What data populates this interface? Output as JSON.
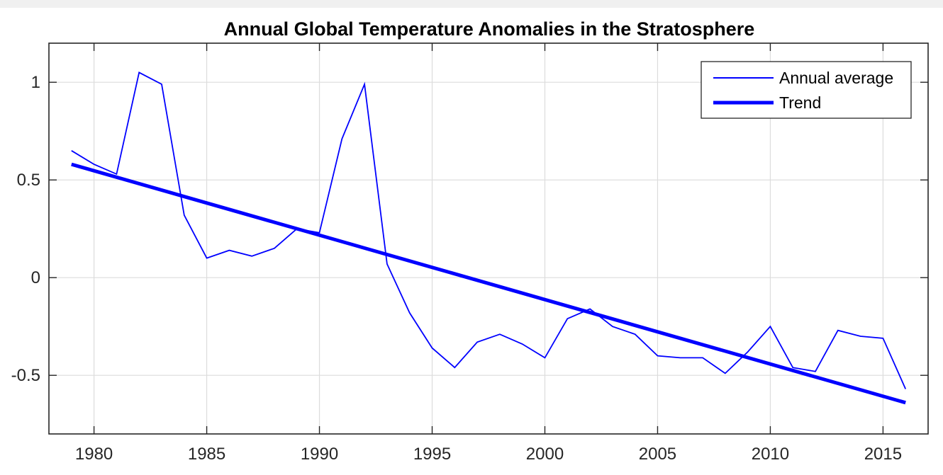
{
  "chart_data": {
    "type": "line",
    "title": "Annual Global Temperature Anomalies in the Stratosphere",
    "xlabel": "",
    "ylabel": "",
    "xlim": [
      1978,
      2017
    ],
    "ylim": [
      -0.8,
      1.2
    ],
    "xticks": [
      1980,
      1985,
      1990,
      1995,
      2000,
      2005,
      2010,
      2015
    ],
    "yticks": [
      -0.5,
      0,
      0.5,
      1
    ],
    "ytick_labels": [
      "-0.5",
      "0",
      "0.5",
      "1"
    ],
    "grid": true,
    "legend_position": "top-right",
    "colors": {
      "annual": "#0000ff",
      "trend": "#0000ff",
      "grid": "#dcdcdc",
      "axes": "#262626",
      "title_bar": "#f0f0f0"
    },
    "x": [
      1979,
      1980,
      1981,
      1982,
      1983,
      1984,
      1985,
      1986,
      1987,
      1988,
      1989,
      1990,
      1991,
      1992,
      1993,
      1994,
      1995,
      1996,
      1997,
      1998,
      1999,
      2000,
      2001,
      2002,
      2003,
      2004,
      2005,
      2006,
      2007,
      2008,
      2009,
      2010,
      2011,
      2012,
      2013,
      2014,
      2015,
      2016
    ],
    "series": [
      {
        "name": "Annual average",
        "values": [
          0.65,
          0.58,
          0.53,
          1.05,
          0.99,
          0.32,
          0.1,
          0.14,
          0.11,
          0.15,
          0.25,
          0.23,
          0.71,
          0.99,
          0.07,
          -0.18,
          -0.36,
          -0.46,
          -0.33,
          -0.29,
          -0.34,
          -0.41,
          -0.21,
          -0.16,
          -0.25,
          -0.29,
          -0.4,
          -0.41,
          -0.41,
          -0.49,
          -0.38,
          -0.25,
          -0.46,
          -0.48,
          -0.27,
          -0.3,
          -0.31,
          -0.57
        ]
      },
      {
        "name": "Trend",
        "values": [
          0.58,
          -0.64
        ],
        "x": [
          1979,
          2016
        ]
      }
    ]
  }
}
